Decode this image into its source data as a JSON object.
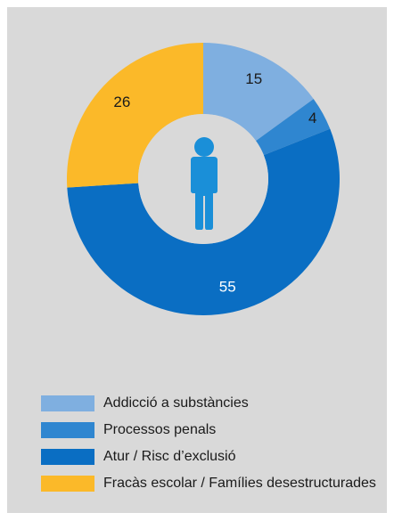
{
  "chart_data": {
    "type": "pie",
    "variant": "donut",
    "title": "",
    "categories": [
      "Addicció a substàncies",
      "Processos penals",
      "Atur / Risc d’exclusió",
      "Fracàs escolar / Famílies desestructurades"
    ],
    "values": [
      15,
      4,
      55,
      26
    ],
    "value_labels": [
      "15",
      "4",
      "55",
      "26"
    ],
    "colors": [
      "#7fafe0",
      "#2f86d0",
      "#0a6ec3",
      "#fbb929"
    ],
    "label_colors": [
      "#1a1a1a",
      "#1a1a1a",
      "#ffffff",
      "#1a1a1a"
    ],
    "center_icon": "person-icon",
    "center_icon_color": "#1a8fd8",
    "legend_position": "bottom-left",
    "background": "#d9d9d9"
  }
}
